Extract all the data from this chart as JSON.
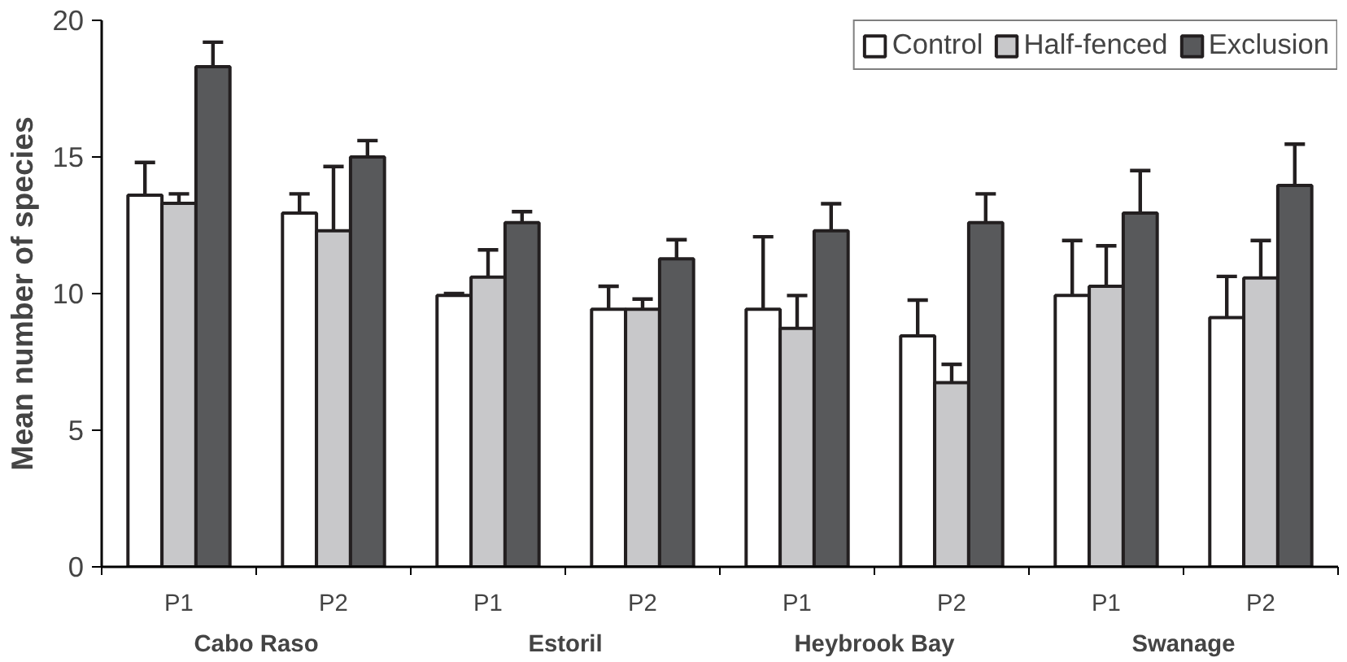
{
  "chart_data": {
    "type": "bar",
    "ylabel": "Mean number of species",
    "categories": [
      "P1",
      "P2",
      "P1",
      "P2",
      "P1",
      "P2",
      "P1",
      "P2"
    ],
    "annotations": [
      "Cabo Raso",
      "Estoril",
      "Heybrook Bay",
      "Swanage"
    ],
    "series": [
      {
        "name": "Control",
        "color": "#ffffff",
        "values": [
          13.6,
          12.95,
          9.93,
          9.43,
          9.43,
          8.45,
          9.93,
          9.12
        ],
        "errors": [
          [
            13.6,
            14.8
          ],
          [
            12.95,
            13.65
          ],
          [
            9.93,
            10.0
          ],
          [
            9.43,
            10.27
          ],
          [
            9.43,
            12.08
          ],
          [
            8.45,
            9.76
          ],
          [
            9.93,
            11.94
          ],
          [
            9.12,
            10.63
          ]
        ]
      },
      {
        "name": "Half-fenced",
        "color": "#c8c8ca",
        "values": [
          13.3,
          12.3,
          10.6,
          9.43,
          8.73,
          6.74,
          10.27,
          10.57
        ],
        "errors": [
          [
            13.3,
            13.65
          ],
          [
            12.3,
            14.65
          ],
          [
            10.6,
            11.6
          ],
          [
            9.43,
            9.8
          ],
          [
            8.73,
            9.93
          ],
          [
            6.74,
            7.41
          ],
          [
            10.27,
            11.75
          ],
          [
            10.57,
            11.94
          ]
        ]
      },
      {
        "name": "Exclusion",
        "color": "#58595b",
        "values": [
          18.3,
          15.0,
          12.6,
          11.27,
          12.3,
          12.6,
          12.95,
          13.96
        ],
        "errors": [
          [
            18.3,
            19.2
          ],
          [
            15.0,
            15.6
          ],
          [
            12.6,
            13.0
          ],
          [
            11.27,
            11.97
          ],
          [
            12.3,
            13.29
          ],
          [
            12.6,
            13.65
          ],
          [
            12.95,
            14.5
          ],
          [
            13.96,
            15.47
          ]
        ]
      }
    ],
    "ylim": [
      0,
      20
    ],
    "yticks": [
      0,
      5,
      10,
      15,
      20
    ],
    "grid": false,
    "legend": "top right"
  }
}
